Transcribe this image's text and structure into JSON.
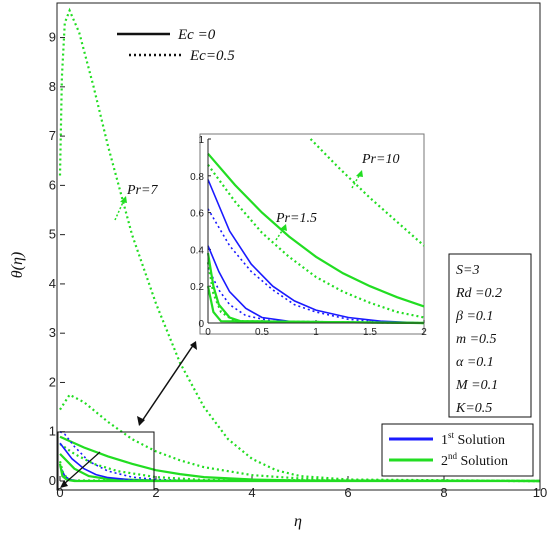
{
  "chart_data": {
    "type": "line",
    "xlabel": "η",
    "ylabel": "θ(η)",
    "xlim": [
      0,
      10
    ],
    "ylim": [
      0,
      9.6
    ],
    "xticks": [
      "0",
      "2",
      "4",
      "6",
      "8",
      "10"
    ],
    "yticks": [
      "0",
      "1",
      "2",
      "3",
      "4",
      "5",
      "6",
      "7",
      "8",
      "9"
    ],
    "style_legend": [
      {
        "label": "Ec =0",
        "dash": "solid"
      },
      {
        "label": "Ec=0.5",
        "dash": "dotted"
      }
    ],
    "solution_legend": [
      {
        "label_main": "1",
        "label_sup": "st",
        "label_rest": " Solution",
        "color": "#1a1aff"
      },
      {
        "label_main": "2",
        "label_sup": "nd",
        "label_rest": " Solution",
        "color": "#22dd22"
      }
    ],
    "params": [
      "S=3",
      "Rd =0.2",
      "β =0.1",
      "m =0.5",
      "α =0.1",
      "M =0.1",
      "K=0.5"
    ],
    "annotations": {
      "pr7": "Pr=7",
      "pr15": "Pr=1.5",
      "pr10": "Pr=10"
    },
    "series": [
      {
        "solution": 2,
        "Pr": 7,
        "Ec": 0.5,
        "points": [
          [
            0,
            6.2
          ],
          [
            0.04,
            8.2
          ],
          [
            0.1,
            9.3
          ],
          [
            0.2,
            9.55
          ],
          [
            0.4,
            9.1
          ],
          [
            0.7,
            8.0
          ],
          [
            1.0,
            6.8
          ],
          [
            1.5,
            5.0
          ],
          [
            2.0,
            3.6
          ],
          [
            2.5,
            2.4
          ],
          [
            3.0,
            1.5
          ],
          [
            3.5,
            0.85
          ],
          [
            4.0,
            0.45
          ],
          [
            4.5,
            0.22
          ],
          [
            5.0,
            0.1
          ],
          [
            6.0,
            0.03
          ],
          [
            10,
            0.0
          ]
        ]
      },
      {
        "solution": 2,
        "Pr": 1.5,
        "Ec": 0.5,
        "points": [
          [
            0,
            1.45
          ],
          [
            0.2,
            1.75
          ],
          [
            0.5,
            1.6
          ],
          [
            1.0,
            1.2
          ],
          [
            1.5,
            0.85
          ],
          [
            2.0,
            0.6
          ],
          [
            2.5,
            0.42
          ],
          [
            3.0,
            0.28
          ],
          [
            4.0,
            0.12
          ],
          [
            5.0,
            0.05
          ],
          [
            6.0,
            0.02
          ],
          [
            10,
            0.0
          ]
        ]
      },
      {
        "solution": 2,
        "Pr": 1.5,
        "Ec": 0,
        "points": [
          [
            0,
            0.9
          ],
          [
            0.5,
            0.68
          ],
          [
            1.0,
            0.5
          ],
          [
            1.5,
            0.35
          ],
          [
            2.0,
            0.22
          ],
          [
            2.5,
            0.14
          ],
          [
            3.0,
            0.08
          ],
          [
            4.0,
            0.03
          ],
          [
            5.0,
            0.01
          ],
          [
            10,
            0.0
          ]
        ]
      },
      {
        "solution": 2,
        "Pr": 1.5,
        "Ec": 0,
        "points": [
          [
            0,
            0.55
          ],
          [
            0.3,
            0.25
          ],
          [
            0.6,
            0.1
          ],
          [
            1.0,
            0.04
          ],
          [
            2.0,
            0.01
          ],
          [
            10,
            0.0
          ]
        ]
      },
      {
        "solution": 2,
        "Pr": 1.5,
        "Ec": 0.5,
        "points": [
          [
            0,
            0.75
          ],
          [
            0.3,
            0.55
          ],
          [
            0.7,
            0.35
          ],
          [
            1.2,
            0.2
          ],
          [
            2.0,
            0.08
          ],
          [
            3.0,
            0.02
          ],
          [
            10,
            0.0
          ]
        ]
      },
      {
        "solution": 1,
        "Pr": 1.5,
        "Ec": 0,
        "points": [
          [
            0,
            0.77
          ],
          [
            0.25,
            0.45
          ],
          [
            0.5,
            0.25
          ],
          [
            0.75,
            0.13
          ],
          [
            1.0,
            0.07
          ],
          [
            1.5,
            0.02
          ],
          [
            2.0,
            0.005
          ],
          [
            10,
            0.0
          ]
        ]
      },
      {
        "solution": 1,
        "Pr": 1.5,
        "Ec": 0.5,
        "points": [
          [
            0,
            1.0
          ],
          [
            0.1,
            0.95
          ],
          [
            0.3,
            0.7
          ],
          [
            0.6,
            0.4
          ],
          [
            1.0,
            0.2
          ],
          [
            1.5,
            0.08
          ],
          [
            2.0,
            0.03
          ],
          [
            3.0,
            0.0
          ]
        ]
      },
      {
        "solution": 1,
        "Pr": 1.5,
        "Ec": 0,
        "points": [
          [
            0,
            0.3
          ],
          [
            0.1,
            0.1
          ],
          [
            0.2,
            0.03
          ],
          [
            0.4,
            0.0
          ],
          [
            10,
            0.0
          ]
        ]
      },
      {
        "solution": 2,
        "Pr": 1.5,
        "Ec": 0,
        "points": [
          [
            0,
            0.35
          ],
          [
            0.05,
            0.1
          ],
          [
            0.15,
            0.02
          ],
          [
            0.3,
            0.0
          ],
          [
            10,
            0.0
          ]
        ]
      },
      {
        "solution": 2,
        "Pr": 1.5,
        "Ec": 0.5,
        "points": [
          [
            0,
            0.4
          ],
          [
            0.06,
            0.18
          ],
          [
            0.15,
            0.05
          ],
          [
            0.3,
            0.01
          ],
          [
            10,
            0.0
          ]
        ]
      }
    ],
    "inset": {
      "xlim": [
        0,
        2
      ],
      "ylim": [
        0,
        1
      ],
      "xticks": [
        "0",
        "0.5",
        "1",
        "1.5",
        "2"
      ],
      "yticks": [
        "0",
        "0.2",
        "0.4",
        "0.6",
        "0.8",
        "1"
      ],
      "series": [
        {
          "solution": 2,
          "Pr": 10,
          "Ec": 0.5,
          "points": [
            [
              0.95,
              1.0
            ],
            [
              1.2,
              0.85
            ],
            [
              1.5,
              0.68
            ],
            [
              1.75,
              0.55
            ],
            [
              2.0,
              0.42
            ]
          ]
        },
        {
          "solution": 2,
          "Pr": 1.5,
          "Ec": 0,
          "points": [
            [
              0,
              0.92
            ],
            [
              0.25,
              0.75
            ],
            [
              0.5,
              0.6
            ],
            [
              0.75,
              0.47
            ],
            [
              1.0,
              0.36
            ],
            [
              1.25,
              0.27
            ],
            [
              1.5,
              0.2
            ],
            [
              1.75,
              0.14
            ],
            [
              2.0,
              0.09
            ]
          ]
        },
        {
          "solution": 2,
          "Pr": 1.5,
          "Ec": 0.5,
          "points": [
            [
              0,
              0.86
            ],
            [
              0.25,
              0.66
            ],
            [
              0.5,
              0.49
            ],
            [
              0.75,
              0.36
            ],
            [
              1.0,
              0.25
            ],
            [
              1.25,
              0.17
            ],
            [
              1.5,
              0.11
            ],
            [
              1.75,
              0.06
            ],
            [
              2.0,
              0.03
            ]
          ]
        },
        {
          "solution": 1,
          "Pr": 1.5,
          "Ec": 0,
          "points": [
            [
              0,
              0.78
            ],
            [
              0.2,
              0.5
            ],
            [
              0.4,
              0.32
            ],
            [
              0.6,
              0.2
            ],
            [
              0.8,
              0.12
            ],
            [
              1.0,
              0.07
            ],
            [
              1.3,
              0.03
            ],
            [
              1.6,
              0.01
            ],
            [
              2.0,
              0.0
            ]
          ]
        },
        {
          "solution": 1,
          "Pr": 1.5,
          "Ec": 0.5,
          "points": [
            [
              0,
              0.62
            ],
            [
              0.2,
              0.42
            ],
            [
              0.4,
              0.28
            ],
            [
              0.6,
              0.18
            ],
            [
              0.8,
              0.1
            ],
            [
              1.0,
              0.06
            ],
            [
              1.3,
              0.02
            ],
            [
              1.6,
              0.005
            ],
            [
              2.0,
              0.0
            ]
          ]
        },
        {
          "solution": 1,
          "Pr": 1.5,
          "Ec": 0,
          "points": [
            [
              0,
              0.42
            ],
            [
              0.1,
              0.28
            ],
            [
              0.2,
              0.17
            ],
            [
              0.35,
              0.08
            ],
            [
              0.5,
              0.03
            ],
            [
              0.8,
              0.005
            ],
            [
              2.0,
              0.0
            ]
          ]
        },
        {
          "solution": 1,
          "Pr": 1.5,
          "Ec": 0.5,
          "points": [
            [
              0,
              0.3
            ],
            [
              0.1,
              0.18
            ],
            [
              0.2,
              0.1
            ],
            [
              0.35,
              0.04
            ],
            [
              0.6,
              0.01
            ],
            [
              2.0,
              0.0
            ]
          ]
        },
        {
          "solution": 2,
          "Pr": 1.5,
          "Ec": 0,
          "points": [
            [
              0,
              0.38
            ],
            [
              0.05,
              0.2
            ],
            [
              0.1,
              0.1
            ],
            [
              0.2,
              0.03
            ],
            [
              0.3,
              0.01
            ],
            [
              2.0,
              0.0
            ]
          ]
        },
        {
          "solution": 2,
          "Pr": 1.5,
          "Ec": 0.5,
          "points": [
            [
              0,
              0.33
            ],
            [
              0.05,
              0.16
            ],
            [
              0.12,
              0.06
            ],
            [
              0.25,
              0.01
            ],
            [
              2.0,
              0.0
            ]
          ]
        },
        {
          "solution": 2,
          "Pr": 1.5,
          "Ec": 0,
          "points": [
            [
              0,
              0.2
            ],
            [
              0.05,
              0.06
            ],
            [
              0.12,
              0.01
            ],
            [
              2.0,
              0.0
            ]
          ]
        }
      ]
    }
  }
}
